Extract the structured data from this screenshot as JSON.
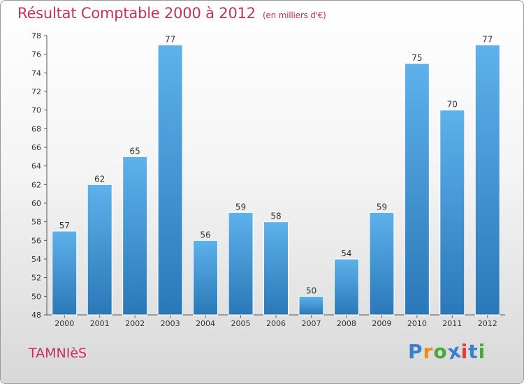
{
  "title": "Résultat Comptable 2000 à 2012",
  "subtitle": "(en milliers d'€)",
  "commune": "TAMNIèS",
  "brand": {
    "name": "Proxiti",
    "letters": [
      "P",
      "r",
      "o",
      "x",
      "i",
      "t",
      "i"
    ],
    "letter_colors": [
      "#3a7fd0",
      "#f08a1a",
      "#4aa83a",
      "#3a7fd0",
      "#e03a3a",
      "#3a7fd0",
      "#4aa83a"
    ]
  },
  "colors": {
    "accent": "#c8305b",
    "bar_light": "#5eb1eb",
    "bar_dark": "#2a78b8",
    "axis": "#555555",
    "grid": "#e2e2e2"
  },
  "chart_data": {
    "type": "bar",
    "title": "Résultat Comptable 2000 à 2012",
    "subtitle": "(en milliers d'€)",
    "xlabel": "",
    "ylabel": "",
    "categories": [
      "2000",
      "2001",
      "2002",
      "2003",
      "2004",
      "2005",
      "2006",
      "2007",
      "2008",
      "2009",
      "2010",
      "2011",
      "2012"
    ],
    "values": [
      57,
      62,
      65,
      77,
      56,
      59,
      58,
      50,
      54,
      59,
      75,
      70,
      77
    ],
    "data_labels": [
      "57",
      "62",
      "65",
      "77",
      "56",
      "59",
      "58",
      "50",
      "54",
      "59",
      "75",
      "70",
      "77"
    ],
    "ylim": [
      48,
      78
    ],
    "yticks": [
      "48",
      "50",
      "52",
      "54",
      "56",
      "58",
      "60",
      "62",
      "64",
      "66",
      "68",
      "70",
      "72",
      "74",
      "76",
      "78"
    ],
    "grid": false,
    "legend": "none"
  }
}
